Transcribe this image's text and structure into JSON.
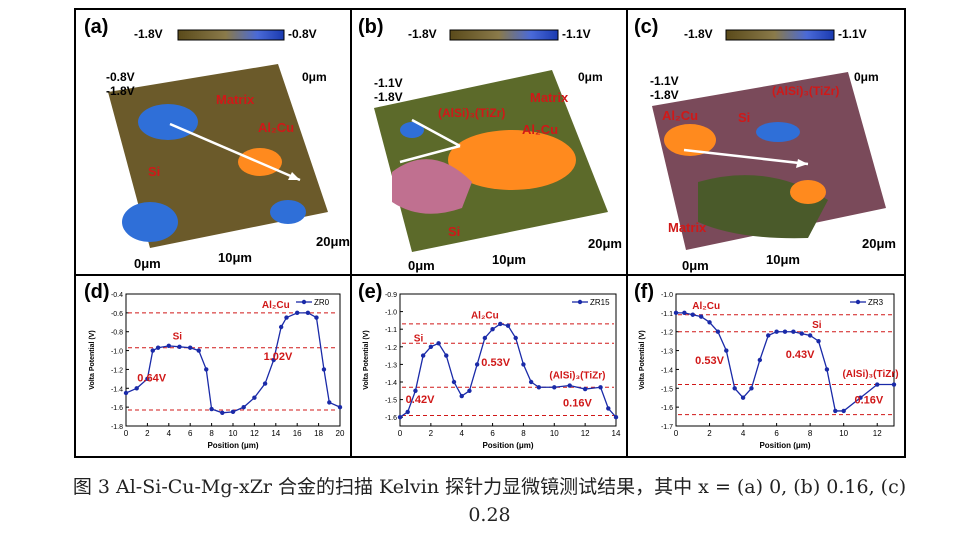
{
  "caption": {
    "line1": "图 3 Al-Si-Cu-Mg-xZr 合金的扫描 Kelvin 探针力显微镜测试结果，其中 x = (a) 0, (b) 0.16, (c)",
    "line2": "0.28"
  },
  "colors": {
    "matrix": "#6b5a2a",
    "si": "#2f6fd8",
    "cu": "#ff8a1e",
    "pink": "#c07090",
    "curve": "#1a2aa8",
    "annot": "#d01818"
  },
  "top_panels": [
    {
      "label": "(a)",
      "scale_min": "-1.8V",
      "scale_max": "-0.8V",
      "z_top": "-0.8V",
      "z_bottom": "-1.8V",
      "origin": "0μm",
      "x_label": "10μm",
      "x_end": "20μm",
      "y_end": "0μm",
      "phases": [
        "Matrix",
        "Al₂Cu",
        "Si"
      ]
    },
    {
      "label": "(b)",
      "scale_min": "-1.8V",
      "scale_max": "-1.1V",
      "z_top": "-1.1V",
      "z_bottom": "-1.8V",
      "origin": "0μm",
      "x_label": "10μm",
      "x_end": "20μm",
      "y_end": "0μm",
      "phases": [
        "Matrix",
        "Al₂Cu",
        "(AlSi)₃(TiZr)",
        "Si"
      ]
    },
    {
      "label": "(c)",
      "scale_min": "-1.8V",
      "scale_max": "-1.1V",
      "z_top": "-1.1V",
      "z_bottom": "-1.8V",
      "origin": "0μm",
      "x_label": "10μm",
      "x_end": "20μm",
      "y_end": "0μm",
      "phases": [
        "Al₂Cu",
        "Si",
        "(AlSi)₃(TiZr)",
        "Matrix"
      ]
    }
  ],
  "chart_data": [
    {
      "type": "line",
      "panel": "(d)",
      "legend": "ZR0",
      "xlabel": "Position (μm)",
      "ylabel": "Volta Potential (V)",
      "xlim": [
        0,
        20
      ],
      "ylim": [
        -1.8,
        -0.4
      ],
      "xticks": [
        0,
        2,
        4,
        6,
        8,
        10,
        12,
        14,
        16,
        18,
        20
      ],
      "yticks": [
        -1.8,
        -1.6,
        -1.4,
        -1.2,
        -1.0,
        -0.8,
        -0.6,
        -0.4
      ],
      "ytick_labels": [
        "-1.8",
        "-1.6",
        "-1.4",
        "-1.2",
        "-1.0",
        "-0.8",
        "-0.6",
        "-0.4"
      ],
      "x": [
        0,
        1,
        2,
        2.5,
        3,
        4,
        5,
        6,
        6.8,
        7.5,
        8,
        9,
        10,
        11,
        12,
        13,
        13.8,
        14.5,
        15,
        16,
        17,
        17.8,
        18.5,
        19,
        20
      ],
      "y": [
        -1.45,
        -1.4,
        -1.3,
        -1.0,
        -0.97,
        -0.95,
        -0.96,
        -0.97,
        -1.0,
        -1.2,
        -1.62,
        -1.66,
        -1.65,
        -1.6,
        -1.5,
        -1.35,
        -1.1,
        -0.75,
        -0.65,
        -0.6,
        -0.6,
        -0.65,
        -1.2,
        -1.55,
        -1.6
      ],
      "annotations": [
        {
          "text": "Si",
          "at": [
            4.8,
            -0.88
          ]
        },
        {
          "text": "Al₂Cu",
          "at": [
            14,
            -0.55
          ]
        },
        {
          "text": "0.64V",
          "at": [
            2.4,
            -1.33
          ]
        },
        {
          "text": "1.02V",
          "at": [
            14.2,
            -1.1
          ]
        }
      ],
      "dashed_levels": [
        -0.97,
        -0.6,
        -1.63
      ]
    },
    {
      "type": "line",
      "panel": "(e)",
      "legend": "ZR15",
      "xlabel": "Position (μm)",
      "ylabel": "Volta Potential (V)",
      "xlim": [
        0,
        14
      ],
      "ylim": [
        -1.65,
        -0.9
      ],
      "xticks": [
        0,
        2,
        4,
        6,
        8,
        10,
        12,
        14
      ],
      "yticks": [
        -1.6,
        -1.5,
        -1.4,
        -1.3,
        -1.2,
        -1.1,
        -1.0,
        -0.9
      ],
      "ytick_labels": [
        "-1.6",
        "-1.5",
        "-1.4",
        "-1.3",
        "-1.2",
        "-1.1",
        "-1.0",
        "-0.9"
      ],
      "x": [
        0,
        0.5,
        1,
        1.5,
        2,
        2.5,
        3,
        3.5,
        4,
        4.5,
        5,
        5.5,
        6,
        6.5,
        7,
        7.5,
        8,
        8.5,
        9,
        10,
        11,
        12,
        13,
        13.5,
        14
      ],
      "y": [
        -1.6,
        -1.57,
        -1.45,
        -1.25,
        -1.2,
        -1.18,
        -1.25,
        -1.4,
        -1.48,
        -1.45,
        -1.3,
        -1.15,
        -1.1,
        -1.07,
        -1.08,
        -1.15,
        -1.3,
        -1.4,
        -1.43,
        -1.43,
        -1.42,
        -1.44,
        -1.43,
        -1.55,
        -1.6
      ],
      "annotations": [
        {
          "text": "Si",
          "at": [
            1.2,
            -1.17
          ]
        },
        {
          "text": "Al₂Cu",
          "at": [
            5.5,
            -1.04
          ]
        },
        {
          "text": "(AlSi)₃(TiZr)",
          "at": [
            11.5,
            -1.38
          ]
        },
        {
          "text": "0.42V",
          "at": [
            1.3,
            -1.52
          ]
        },
        {
          "text": "0.53V",
          "at": [
            6.2,
            -1.31
          ]
        },
        {
          "text": "0.16V",
          "at": [
            11.5,
            -1.54
          ]
        }
      ],
      "dashed_levels": [
        -1.18,
        -1.07,
        -1.43,
        -1.59
      ]
    },
    {
      "type": "line",
      "panel": "(f)",
      "legend": "ZR3",
      "xlabel": "Position (μm)",
      "ylabel": "Volta Potential (V)",
      "xlim": [
        0,
        13
      ],
      "ylim": [
        -1.7,
        -1.0
      ],
      "xticks": [
        0,
        2,
        4,
        6,
        8,
        10,
        12
      ],
      "yticks": [
        -1.7,
        -1.6,
        -1.5,
        -1.4,
        -1.3,
        -1.2,
        -1.1,
        -1.0
      ],
      "ytick_labels": [
        "-1.7",
        "-1.6",
        "-1.5",
        "-1.4",
        "-1.3",
        "-1.2",
        "-1.1",
        "-1.0"
      ],
      "x": [
        0,
        0.5,
        1,
        1.5,
        2,
        2.5,
        3,
        3.5,
        4,
        4.5,
        5,
        5.5,
        6,
        6.5,
        7,
        7.5,
        8,
        8.5,
        9,
        9.5,
        10,
        11,
        12,
        13
      ],
      "y": [
        -1.1,
        -1.1,
        -1.11,
        -1.12,
        -1.15,
        -1.2,
        -1.3,
        -1.5,
        -1.55,
        -1.5,
        -1.35,
        -1.22,
        -1.2,
        -1.2,
        -1.2,
        -1.21,
        -1.22,
        -1.25,
        -1.4,
        -1.62,
        -1.62,
        -1.55,
        -1.48,
        -1.48
      ],
      "annotations": [
        {
          "text": "Al₂Cu",
          "at": [
            1.8,
            -1.08
          ]
        },
        {
          "text": "Si",
          "at": [
            8.4,
            -1.18
          ]
        },
        {
          "text": "(AlSi)₃(TiZr)",
          "at": [
            11.6,
            -1.44
          ]
        },
        {
          "text": "0.53V",
          "at": [
            2,
            -1.37
          ]
        },
        {
          "text": "0.43V",
          "at": [
            7.4,
            -1.34
          ]
        },
        {
          "text": "0.16V",
          "at": [
            11.5,
            -1.58
          ]
        }
      ],
      "dashed_levels": [
        -1.11,
        -1.2,
        -1.48,
        -1.64
      ]
    }
  ]
}
